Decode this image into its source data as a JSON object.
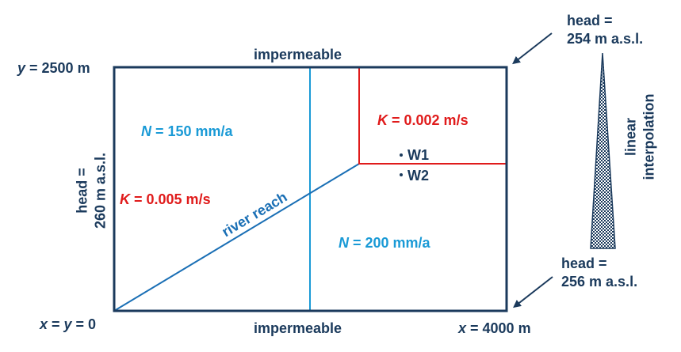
{
  "labels": {
    "y_max": {
      "var": "y",
      "eq": " = 2500 m"
    },
    "origin": {
      "x": "x",
      "y": "y",
      "text": " = 0"
    },
    "x_max": {
      "var": "x",
      "eq": " = 4000 m"
    },
    "top_boundary": "impermeable",
    "bottom_boundary": "impermeable",
    "left_head_line1": "head =",
    "left_head_line2": "260 m a.s.l.",
    "top_right_head_line1": "head =",
    "top_right_head_line2": "254 m a.s.l.",
    "bottom_right_head_line1": "head =",
    "bottom_right_head_line2": "256 m a.s.l.",
    "interp_line1": "linear",
    "interp_line2": "interpolation",
    "recharge_left": {
      "var": "N",
      "eq": " = 150 mm/a"
    },
    "recharge_right": {
      "var": "N",
      "eq": " = 200 mm/a"
    },
    "k_left": {
      "var": "K",
      "eq": " = 0.005 m/s"
    },
    "k_zone": {
      "var": "K",
      "eq": " = 0.002 m/s"
    },
    "river": "river reach",
    "well_1": "W1",
    "well_2": "W2"
  },
  "colors": {
    "navy": "#1b3a5c",
    "blue": "#1a9ad6",
    "river": "#1a6fb5",
    "red": "#e01b1b"
  }
}
